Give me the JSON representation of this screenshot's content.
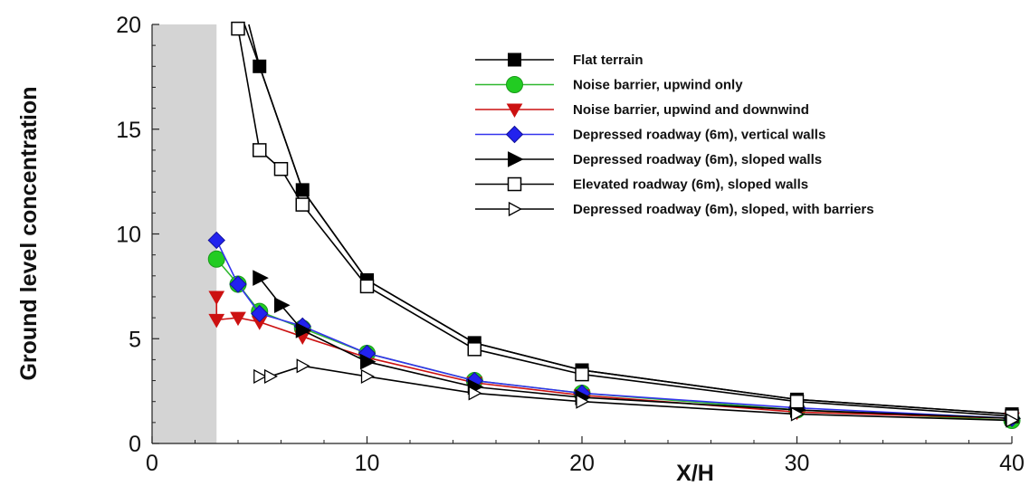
{
  "chart_data": {
    "type": "line",
    "title": "",
    "xlabel": "X/H",
    "ylabel": "Ground level concentration",
    "xlim": [
      0,
      40
    ],
    "ylim": [
      0,
      20
    ],
    "x_ticks": [
      0,
      10,
      20,
      30,
      40
    ],
    "x_tick_labels": [
      "0",
      "10",
      "20",
      "30",
      "40"
    ],
    "y_ticks": [
      0,
      5,
      10,
      15,
      20
    ],
    "y_tick_labels": [
      "0",
      "5",
      "10",
      "15",
      "20"
    ],
    "shaded_region": {
      "x": [
        0,
        3
      ],
      "color": "#d4d4d4"
    },
    "grid": false,
    "legend_position": "top-right",
    "series": [
      {
        "name": "Flat terrain",
        "color": "#000000",
        "marker": "square-filled",
        "marker_color": "#000000",
        "x": [
          5,
          7,
          10,
          15,
          20,
          30,
          40
        ],
        "y": [
          18.0,
          12.1,
          7.8,
          4.8,
          3.5,
          2.1,
          1.4
        ]
      },
      {
        "name": "Noise barrier, upwind only",
        "color": "#2fb82f",
        "marker": "circle-filled",
        "marker_color": "#22cc22",
        "x": [
          3,
          4,
          5,
          7,
          10,
          15,
          20,
          30,
          40
        ],
        "y": [
          8.8,
          7.6,
          6.3,
          5.5,
          4.3,
          3.0,
          2.4,
          1.6,
          1.1
        ]
      },
      {
        "name": "Noise barrier, upwind and downwind",
        "color": "#cc1111",
        "marker": "triangle-down-filled",
        "marker_color": "#cc1111",
        "x": [
          3,
          3,
          4,
          5,
          7,
          10,
          15,
          20,
          30,
          40
        ],
        "y": [
          7.0,
          5.9,
          6.0,
          5.8,
          5.1,
          4.1,
          2.9,
          2.3,
          1.5,
          1.2
        ]
      },
      {
        "name": "Depressed roadway (6m), vertical walls",
        "color": "#3333ee",
        "marker": "diamond-filled",
        "marker_color": "#2222ee",
        "x": [
          3,
          4,
          5,
          7,
          10,
          15,
          20,
          30,
          40
        ],
        "y": [
          9.7,
          7.6,
          6.2,
          5.6,
          4.3,
          3.0,
          2.4,
          1.7,
          1.2
        ]
      },
      {
        "name": "Depressed roadway (6m), sloped walls",
        "color": "#000000",
        "marker": "triangle-right-filled",
        "marker_color": "#000000",
        "x": [
          5,
          6,
          7,
          10,
          15,
          20,
          30,
          40
        ],
        "y": [
          7.9,
          6.6,
          5.4,
          3.9,
          2.7,
          2.2,
          1.6,
          1.2
        ]
      },
      {
        "name": "Elevated roadway (6m), sloped walls",
        "color": "#000000",
        "marker": "square-open",
        "marker_color": "#ffffff",
        "x": [
          4,
          5,
          6,
          7,
          10,
          15,
          20,
          30,
          40
        ],
        "y": [
          19.8,
          14.0,
          13.1,
          11.4,
          7.5,
          4.5,
          3.3,
          2.0,
          1.3
        ]
      },
      {
        "name": "Depressed roadway (6m), sloped, with barriers",
        "color": "#000000",
        "marker": "triangle-right-open",
        "marker_color": "#ffffff",
        "x": [
          5,
          5.5,
          7,
          10,
          15,
          20,
          30,
          40
        ],
        "y": [
          3.2,
          3.2,
          3.7,
          3.2,
          2.4,
          2.0,
          1.4,
          1.1
        ]
      }
    ]
  },
  "extra_lines": [
    {
      "color": "#000000",
      "x": [
        4.5,
        5,
        7,
        10,
        15,
        20,
        30,
        40
      ],
      "y": [
        20,
        18.0,
        12.1,
        7.8,
        4.8,
        3.5,
        2.1,
        1.4
      ]
    },
    {
      "color": "#000000",
      "x": [
        4.3,
        5
      ],
      "y": [
        20,
        18.0
      ]
    }
  ]
}
